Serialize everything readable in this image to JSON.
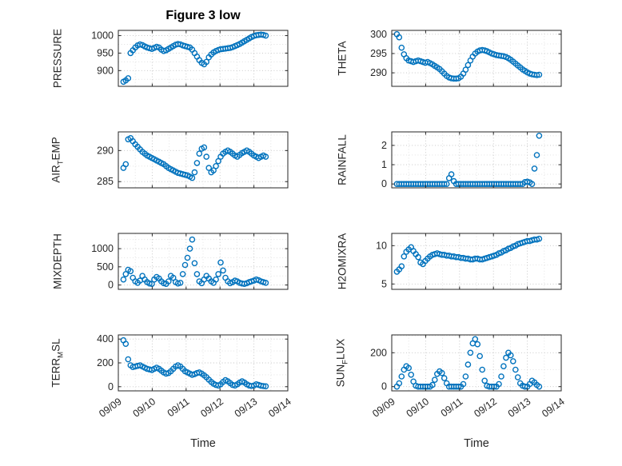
{
  "title": "Figure 3 low",
  "colors": {
    "marker": "#0072BD",
    "axis": "#262626",
    "grid_major": "#c2c2c2",
    "grid_minor": "#e0e0e0",
    "background": "#ffffff"
  },
  "chart_data": {
    "type": "scatter",
    "title": "Figure 3 low",
    "xlabel": "Time",
    "layout_hint": "4x2 subplot grid, dotted major+minor grid, open circle markers, rotated x tick labels on bottom row only",
    "x_axis": {
      "lim": [
        0,
        5
      ],
      "ticks": [
        0,
        1,
        2,
        3,
        4,
        5
      ],
      "tick_labels": [
        "09/09",
        "09/10",
        "09/11",
        "09/12",
        "09/13",
        "09/14"
      ]
    },
    "x_days": [
      0.15,
      0.22,
      0.29,
      0.36,
      0.43,
      0.5,
      0.57,
      0.64,
      0.71,
      0.78,
      0.85,
      0.92,
      0.99,
      1.06,
      1.13,
      1.2,
      1.27,
      1.34,
      1.41,
      1.48,
      1.55,
      1.62,
      1.69,
      1.76,
      1.83,
      1.9,
      1.97,
      2.04,
      2.11,
      2.18,
      2.25,
      2.32,
      2.39,
      2.46,
      2.53,
      2.6,
      2.67,
      2.74,
      2.81,
      2.88,
      2.95,
      3.02,
      3.09,
      3.16,
      3.23,
      3.3,
      3.37,
      3.44,
      3.51,
      3.58,
      3.65,
      3.72,
      3.79,
      3.86,
      3.93,
      4.0,
      4.07,
      4.14,
      4.21,
      4.28,
      4.35
    ],
    "subplots": [
      {
        "name": "PRESSURE",
        "ylabel": {
          "pre": "PRESSURE",
          "sub": "",
          "post": ""
        },
        "ylim": [
          855,
          1015
        ],
        "yticks": [
          900,
          950,
          1000
        ],
        "y": [
          868,
          872,
          878,
          950,
          958,
          966,
          972,
          975,
          973,
          969,
          966,
          964,
          962,
          965,
          968,
          966,
          960,
          956,
          958,
          962,
          966,
          970,
          974,
          976,
          975,
          972,
          970,
          968,
          966,
          960,
          950,
          940,
          930,
          922,
          918,
          925,
          938,
          946,
          952,
          956,
          959,
          961,
          962,
          963,
          964,
          965,
          967,
          970,
          973,
          976,
          980,
          984,
          988,
          992,
          996,
          999,
          1001,
          1002,
          1003,
          1002,
          1000
        ]
      },
      {
        "name": "THETA",
        "ylabel": {
          "pre": "THETA",
          "sub": "",
          "post": ""
        },
        "ylim": [
          286.5,
          301
        ],
        "yticks": [
          290,
          295,
          300
        ],
        "y": [
          300,
          299.2,
          296.5,
          294.8,
          293.8,
          293.2,
          293,
          292.8,
          293,
          293.2,
          293,
          292.8,
          292.6,
          292.8,
          292.5,
          292.2,
          291.8,
          291.4,
          291,
          290.4,
          289.8,
          289.2,
          288.8,
          288.6,
          288.5,
          288.5,
          288.6,
          289,
          289.8,
          290.8,
          292,
          293.2,
          294.2,
          295,
          295.5,
          295.8,
          295.9,
          295.8,
          295.6,
          295.3,
          295,
          294.8,
          294.6,
          294.5,
          294.4,
          294.3,
          294.1,
          293.8,
          293.4,
          292.9,
          292.4,
          291.9,
          291.4,
          290.9,
          290.5,
          290.1,
          289.8,
          289.6,
          289.5,
          289.4,
          289.5
        ]
      },
      {
        "name": "AIR_TEMP",
        "ylabel": {
          "pre": "AIR",
          "sub": "T",
          "post": "EMP"
        },
        "ylim": [
          284,
          293
        ],
        "yticks": [
          285,
          290
        ],
        "y": [
          287.2,
          287.8,
          291.8,
          292,
          291.5,
          291,
          290.6,
          290.2,
          289.8,
          289.5,
          289.2,
          289,
          288.8,
          288.6,
          288.4,
          288.2,
          288,
          287.8,
          287.5,
          287.2,
          287,
          286.8,
          286.6,
          286.4,
          286.3,
          286.2,
          286.1,
          286,
          285.8,
          285.6,
          286.5,
          288,
          289.5,
          290.3,
          290.5,
          289,
          287.2,
          286.5,
          286.8,
          287.5,
          288.3,
          289,
          289.5,
          289.8,
          290,
          289.8,
          289.5,
          289.2,
          289,
          289.3,
          289.6,
          289.8,
          290,
          289.8,
          289.5,
          289.2,
          289,
          288.8,
          289,
          289.2,
          289
        ]
      },
      {
        "name": "RAINFALL",
        "ylabel": {
          "pre": "RAINFALL",
          "sub": "",
          "post": ""
        },
        "ylim": [
          -0.2,
          2.7
        ],
        "yticks": [
          0,
          1,
          2
        ],
        "y": [
          0,
          0,
          0,
          0,
          0,
          0,
          0,
          0,
          0,
          0,
          0,
          0,
          0,
          0,
          0,
          0,
          0,
          0,
          0,
          0,
          0,
          0,
          0.3,
          0.5,
          0.15,
          0,
          0,
          0,
          0,
          0,
          0,
          0,
          0,
          0,
          0,
          0,
          0,
          0,
          0,
          0,
          0,
          0,
          0,
          0,
          0,
          0,
          0,
          0,
          0,
          0,
          0,
          0,
          0,
          0,
          0.1,
          0.12,
          0.08,
          0,
          0.8,
          1.5,
          2.5
        ]
      },
      {
        "name": "MIXDEPTH",
        "ylabel": {
          "pre": "MIXDEPTH",
          "sub": "",
          "post": ""
        },
        "ylim": [
          -120,
          1420
        ],
        "yticks": [
          0,
          500,
          1000
        ],
        "y": [
          150,
          300,
          420,
          380,
          200,
          100,
          60,
          120,
          250,
          150,
          80,
          40,
          30,
          150,
          220,
          180,
          100,
          50,
          30,
          100,
          250,
          200,
          80,
          40,
          60,
          300,
          550,
          750,
          1000,
          1250,
          600,
          300,
          100,
          50,
          150,
          250,
          180,
          100,
          60,
          150,
          300,
          620,
          400,
          200,
          100,
          50,
          80,
          120,
          100,
          60,
          40,
          30,
          50,
          80,
          100,
          120,
          150,
          130,
          100,
          80,
          60
        ]
      },
      {
        "name": "H2OMIXRA",
        "ylabel": {
          "pre": "H2OMIXRA",
          "sub": "",
          "post": ""
        },
        "ylim": [
          4.3,
          11.6
        ],
        "yticks": [
          5,
          10
        ],
        "y": [
          6.6,
          6.9,
          7.3,
          8.6,
          9.2,
          9.5,
          9.8,
          9.3,
          8.9,
          8.5,
          7.8,
          7.6,
          8,
          8.3,
          8.6,
          8.8,
          8.9,
          9,
          8.9,
          8.8,
          8.8,
          8.7,
          8.7,
          8.6,
          8.6,
          8.5,
          8.5,
          8.4,
          8.4,
          8.3,
          8.3,
          8.2,
          8.2,
          8.3,
          8.3,
          8.2,
          8.2,
          8.3,
          8.4,
          8.5,
          8.6,
          8.7,
          8.8,
          9,
          9.1,
          9.3,
          9.4,
          9.6,
          9.7,
          9.9,
          10,
          10.2,
          10.3,
          10.4,
          10.5,
          10.6,
          10.6,
          10.7,
          10.8,
          10.8,
          10.9
        ]
      },
      {
        "name": "TERR_MSL",
        "ylabel": {
          "pre": "TERR",
          "sub": "M",
          "post": "SL"
        },
        "ylim": [
          -35,
          435
        ],
        "yticks": [
          0,
          200,
          400
        ],
        "y": [
          390,
          360,
          230,
          180,
          165,
          170,
          175,
          180,
          170,
          160,
          150,
          145,
          140,
          150,
          160,
          150,
          135,
          120,
          110,
          115,
          130,
          150,
          170,
          180,
          170,
          150,
          130,
          120,
          110,
          100,
          105,
          115,
          120,
          110,
          95,
          80,
          60,
          40,
          25,
          15,
          10,
          20,
          40,
          55,
          45,
          30,
          15,
          10,
          20,
          35,
          45,
          35,
          20,
          10,
          5,
          10,
          20,
          15,
          8,
          5,
          3
        ]
      },
      {
        "name": "SUN_FLUX",
        "ylabel": {
          "pre": "SUN",
          "sub": "F",
          "post": "LUX"
        },
        "ylim": [
          -25,
          305
        ],
        "yticks": [
          0,
          200
        ],
        "y": [
          0,
          20,
          60,
          100,
          120,
          110,
          70,
          30,
          5,
          0,
          0,
          0,
          0,
          0,
          0,
          10,
          40,
          75,
          90,
          80,
          50,
          20,
          0,
          0,
          0,
          0,
          0,
          0,
          15,
          60,
          130,
          200,
          255,
          280,
          250,
          180,
          100,
          35,
          5,
          0,
          0,
          0,
          0,
          15,
          60,
          120,
          170,
          200,
          185,
          150,
          100,
          55,
          20,
          5,
          0,
          0,
          15,
          35,
          25,
          10,
          0
        ]
      }
    ]
  }
}
